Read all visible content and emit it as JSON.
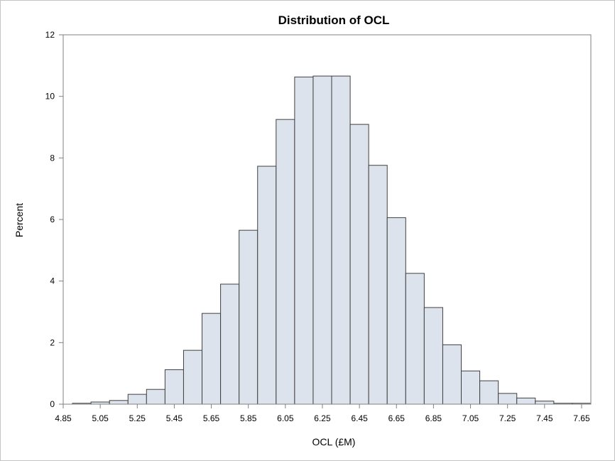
{
  "chart_data": {
    "type": "bar",
    "title": "Distribution of OCL",
    "xlabel": "OCL (£M)",
    "ylabel": "Percent",
    "ylim": [
      0,
      12
    ],
    "yticks": [
      0,
      2,
      4,
      6,
      8,
      10,
      12
    ],
    "xlim": [
      4.85,
      7.7
    ],
    "xticks": [
      "4.85",
      "5.05",
      "5.25",
      "5.45",
      "5.65",
      "5.85",
      "6.05",
      "6.25",
      "6.45",
      "6.65",
      "6.85",
      "7.05",
      "7.25",
      "7.45",
      "7.65"
    ],
    "bin_width": 0.1,
    "bins": [
      {
        "x": 4.95,
        "value": 0.03
      },
      {
        "x": 5.05,
        "value": 0.07
      },
      {
        "x": 5.15,
        "value": 0.12
      },
      {
        "x": 5.25,
        "value": 0.32
      },
      {
        "x": 5.35,
        "value": 0.48
      },
      {
        "x": 5.45,
        "value": 1.12
      },
      {
        "x": 5.55,
        "value": 1.75
      },
      {
        "x": 5.65,
        "value": 2.95
      },
      {
        "x": 5.75,
        "value": 3.9
      },
      {
        "x": 5.85,
        "value": 5.65
      },
      {
        "x": 5.95,
        "value": 7.73
      },
      {
        "x": 6.05,
        "value": 9.25
      },
      {
        "x": 6.15,
        "value": 10.63
      },
      {
        "x": 6.25,
        "value": 10.66
      },
      {
        "x": 6.35,
        "value": 10.66
      },
      {
        "x": 6.45,
        "value": 9.09
      },
      {
        "x": 6.55,
        "value": 7.76
      },
      {
        "x": 6.65,
        "value": 6.06
      },
      {
        "x": 6.75,
        "value": 4.25
      },
      {
        "x": 6.85,
        "value": 3.14
      },
      {
        "x": 6.95,
        "value": 1.93
      },
      {
        "x": 7.05,
        "value": 1.08
      },
      {
        "x": 7.15,
        "value": 0.76
      },
      {
        "x": 7.25,
        "value": 0.35
      },
      {
        "x": 7.35,
        "value": 0.2
      },
      {
        "x": 7.45,
        "value": 0.1
      },
      {
        "x": 7.55,
        "value": 0.03
      },
      {
        "x": 7.65,
        "value": 0.03
      }
    ],
    "grid": false,
    "colors": {
      "bar_fill": "#dde3ec",
      "bar_stroke": "#404040",
      "axis": "#808080"
    }
  }
}
